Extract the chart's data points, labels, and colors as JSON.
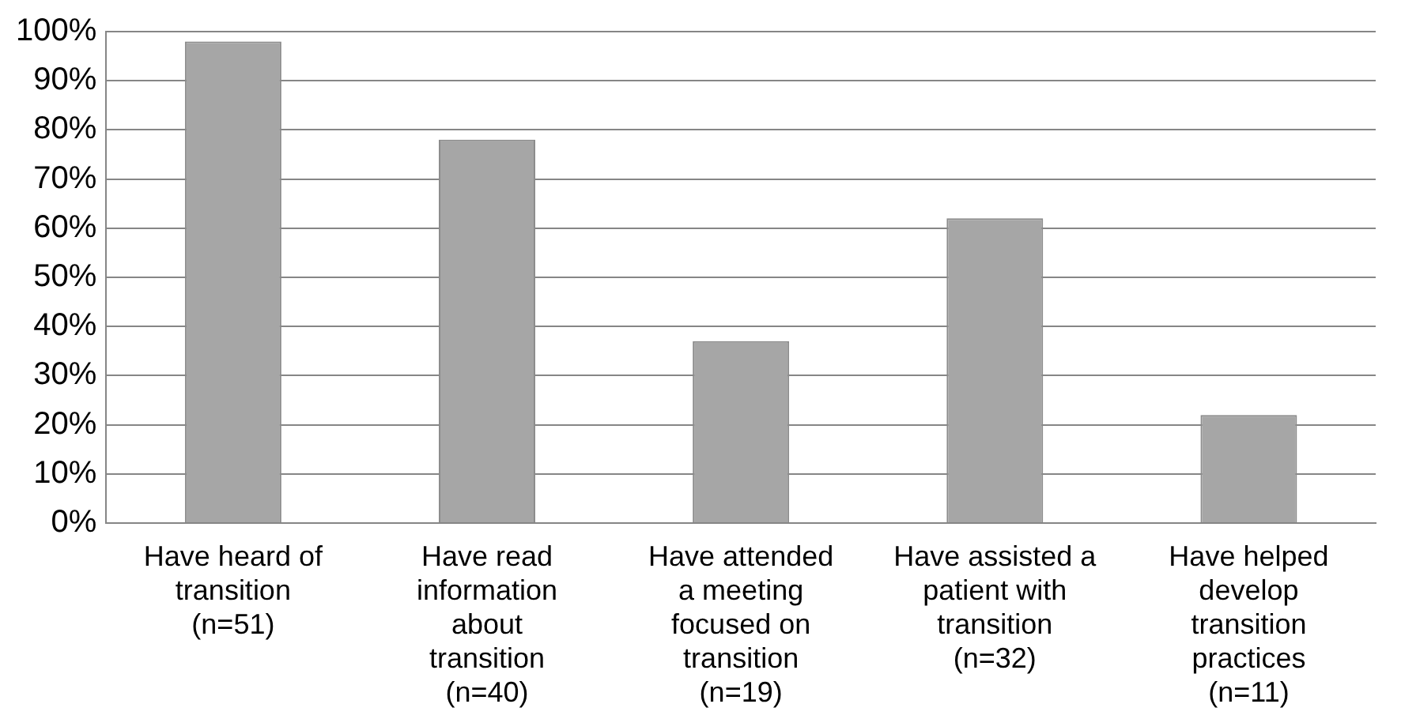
{
  "chart_data": {
    "type": "bar",
    "categories": [
      "Have heard of\ntransition\n(n=51)",
      "Have read\ninformation\nabout\ntransition\n(n=40)",
      "Have attended\na meeting\nfocused on\ntransition\n(n=19)",
      "Have assisted a\npatient with\ntransition\n(n=32)",
      "Have helped\ndevelop\ntransition\npractices\n(n=11)"
    ],
    "values": [
      98,
      78,
      37,
      62,
      22
    ],
    "color": "#a6a6a6",
    "ylim": [
      0,
      100
    ],
    "yticks": [
      {
        "value": 0,
        "label": "0%"
      },
      {
        "value": 10,
        "label": "10%"
      },
      {
        "value": 20,
        "label": "20%"
      },
      {
        "value": 30,
        "label": "30%"
      },
      {
        "value": 40,
        "label": "40%"
      },
      {
        "value": 50,
        "label": "50%"
      },
      {
        "value": 60,
        "label": "60%"
      },
      {
        "value": 70,
        "label": "70%"
      },
      {
        "value": 80,
        "label": "80%"
      },
      {
        "value": 90,
        "label": "90%"
      },
      {
        "value": 100,
        "label": "100%"
      }
    ],
    "grid": "y",
    "legend": false
  }
}
